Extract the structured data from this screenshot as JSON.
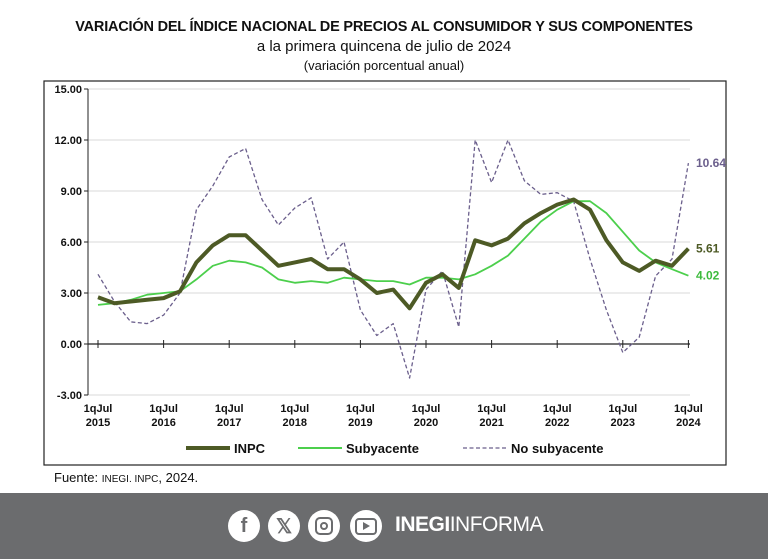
{
  "title": "VARIACIÓN DEL ÍNDICE NACIONAL DE PRECIOS AL CONSUMIDOR Y SUS COMPONENTES",
  "subtitle": "a la primera quincena de julio de 2024",
  "subtitle2": "(variación porcentual anual)",
  "source": {
    "label": "Fuente:",
    "org": "INEGI. INPC",
    "year": ", 2024."
  },
  "footer": {
    "brand_bold": "INEGI",
    "brand_light": "INFORMA",
    "icons": [
      "facebook-icon",
      "x-icon",
      "instagram-icon",
      "youtube-icon"
    ]
  },
  "chart_data": {
    "type": "line",
    "ylim": [
      -3,
      15
    ],
    "yticks": [
      "15.00",
      "12.00",
      "9.00",
      "6.00",
      "3.00",
      "0.00",
      "-3.00"
    ],
    "xticks": [
      [
        "1qJul",
        "2015"
      ],
      [
        "1qJul",
        "2016"
      ],
      [
        "1qJul",
        "2017"
      ],
      [
        "1qJul",
        "2018"
      ],
      [
        "1qJul",
        "2019"
      ],
      [
        "1qJul",
        "2020"
      ],
      [
        "1qJul",
        "2021"
      ],
      [
        "1qJul",
        "2022"
      ],
      [
        "1qJul",
        "2023"
      ],
      [
        "1qJul",
        "2024"
      ]
    ],
    "grid": true,
    "legend": "bottom",
    "x": [
      "2015-07",
      "2015-10",
      "2016-01",
      "2016-04",
      "2016-07",
      "2016-10",
      "2017-01",
      "2017-04",
      "2017-07",
      "2017-10",
      "2018-01",
      "2018-04",
      "2018-07",
      "2018-10",
      "2019-01",
      "2019-04",
      "2019-07",
      "2019-10",
      "2020-01",
      "2020-04",
      "2020-07",
      "2020-10",
      "2021-01",
      "2021-04",
      "2021-07",
      "2021-10",
      "2022-01",
      "2022-04",
      "2022-07",
      "2022-10",
      "2023-01",
      "2023-04",
      "2023-07",
      "2023-10",
      "2024-01",
      "2024-04",
      "2024-07"
    ],
    "series": [
      {
        "name": "INPC",
        "color": "#4d5a25",
        "style": "solid-thick",
        "end_label": "5.61",
        "values": [
          2.75,
          2.4,
          2.5,
          2.6,
          2.7,
          3.1,
          4.8,
          5.8,
          6.4,
          6.4,
          5.5,
          4.6,
          4.8,
          5.0,
          4.4,
          4.4,
          3.8,
          3.0,
          3.2,
          2.1,
          3.6,
          4.1,
          3.3,
          6.1,
          5.8,
          6.2,
          7.1,
          7.7,
          8.2,
          8.5,
          7.9,
          6.1,
          4.8,
          4.3,
          4.9,
          4.6,
          5.61
        ]
      },
      {
        "name": "Subyacente",
        "color": "#4ccf4c",
        "style": "solid",
        "end_label": "4.02",
        "values": [
          2.3,
          2.4,
          2.6,
          2.9,
          3.0,
          3.1,
          3.8,
          4.6,
          4.9,
          4.8,
          4.5,
          3.8,
          3.6,
          3.7,
          3.6,
          3.9,
          3.8,
          3.7,
          3.7,
          3.5,
          3.9,
          3.9,
          3.8,
          4.1,
          4.6,
          5.2,
          6.2,
          7.2,
          7.9,
          8.4,
          8.4,
          7.7,
          6.6,
          5.5,
          4.8,
          4.4,
          4.02
        ]
      },
      {
        "name": "No subyacente",
        "color": "#6b5f8c",
        "style": "dashed",
        "end_label": "10.64",
        "values": [
          4.1,
          2.5,
          1.3,
          1.2,
          1.7,
          3.0,
          7.9,
          9.3,
          11.0,
          11.5,
          8.5,
          7.0,
          8.0,
          8.6,
          5.0,
          6.0,
          2.0,
          0.5,
          1.2,
          -2.0,
          3.2,
          4.3,
          1.0,
          12.0,
          9.5,
          12.0,
          9.6,
          8.8,
          8.9,
          8.4,
          5.0,
          2.0,
          -0.5,
          0.4,
          4.0,
          5.0,
          10.64
        ]
      }
    ]
  }
}
